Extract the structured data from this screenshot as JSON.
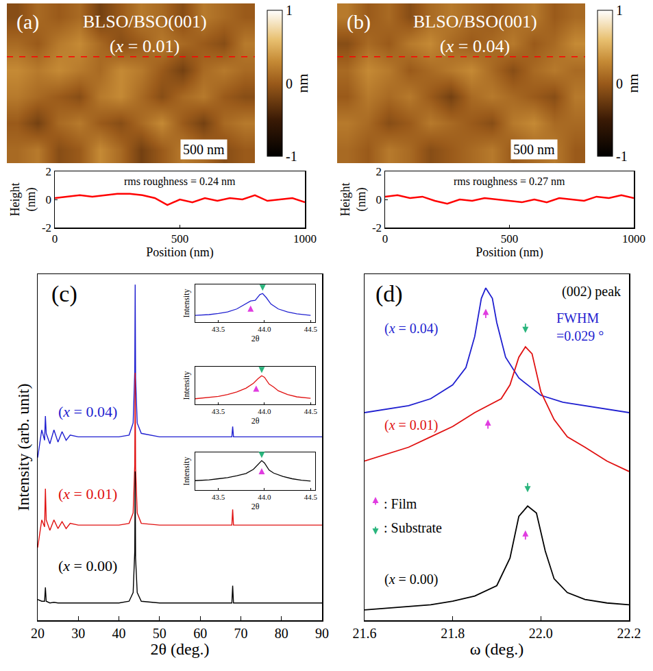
{
  "chart_data": [
    {
      "type": "heatmap",
      "panel_label": "(a)",
      "title": "BLSO/BSO(001)",
      "subtitle": "(x = 0.01)",
      "image_size_nm": [
        1400,
        900
      ],
      "cells": [
        [
          0.1,
          0.2,
          -0.1,
          0.0,
          0.3,
          0.1,
          -0.2,
          0.0,
          0.2,
          0.1,
          -0.1,
          0.0
        ],
        [
          0.0,
          -0.2,
          0.1,
          0.2,
          0.0,
          -0.1,
          0.1,
          0.3,
          0.0,
          -0.2,
          0.1,
          0.2
        ],
        [
          0.2,
          0.1,
          0.0,
          -0.1,
          0.2,
          0.3,
          0.1,
          -0.1,
          0.1,
          0.2,
          0.0,
          -0.1
        ],
        [
          0.3,
          0.2,
          0.3,
          0.2,
          0.1,
          0.3,
          0.2,
          0.0,
          -0.2,
          0.1,
          0.2,
          0.1
        ],
        [
          0.1,
          0.0,
          0.2,
          0.3,
          0.1,
          -0.1,
          0.0,
          0.2,
          0.1,
          0.0,
          -0.1,
          0.2
        ],
        [
          -0.1,
          0.1,
          0.0,
          0.1,
          -0.2,
          0.0,
          0.2,
          0.1,
          -0.1,
          0.2,
          0.1,
          0.0
        ]
      ],
      "zlim": [
        -1,
        1
      ],
      "zticks": [
        -1,
        0,
        1
      ],
      "colorbar_title": "nm",
      "scale_bar": "500 nm",
      "profile_y_nm": 600,
      "line_style": "dashed",
      "color": "#ff0000"
    },
    {
      "type": "line",
      "x": [
        0,
        50,
        100,
        150,
        200,
        250,
        300,
        350,
        400,
        450,
        500,
        550,
        600,
        650,
        700,
        750,
        800,
        850,
        900,
        950,
        1000
      ],
      "values": [
        0.1,
        0.2,
        0.3,
        0.2,
        0.3,
        0.4,
        0.4,
        0.3,
        0.1,
        -0.4,
        0.0,
        -0.2,
        0.1,
        -0.1,
        0.1,
        0.0,
        0.3,
        -0.1,
        0.0,
        0.1,
        -0.2
      ],
      "color": "#ff0000",
      "xlim": [
        0,
        1000
      ],
      "xticks": [
        0,
        500,
        1000
      ],
      "ylim": [
        -2,
        2
      ],
      "yticks": [
        -2,
        0,
        2
      ],
      "x_label": "Position (nm)",
      "y_label": [
        "Height",
        "(nm)"
      ],
      "annotation": "rms roughness = 0.24 nm"
    },
    {
      "type": "heatmap",
      "panel_label": "(b)",
      "title": "BLSO/BSO(001)",
      "subtitle": "(x = 0.04)",
      "image_size_nm": [
        1400,
        900
      ],
      "cells": [
        [
          0.1,
          0.0,
          0.2,
          0.1,
          -0.1,
          0.0,
          0.1,
          0.2,
          0.0,
          0.1,
          0.2,
          0.0
        ],
        [
          0.2,
          0.1,
          -0.1,
          0.0,
          0.2,
          0.1,
          0.0,
          -0.1,
          0.2,
          0.3,
          0.1,
          0.1
        ],
        [
          0.0,
          0.2,
          0.1,
          0.2,
          0.0,
          -0.2,
          0.1,
          0.2,
          0.1,
          0.0,
          -0.1,
          0.2
        ],
        [
          0.1,
          0.3,
          0.2,
          0.0,
          0.1,
          0.2,
          0.3,
          0.1,
          -0.1,
          0.1,
          0.2,
          0.1
        ],
        [
          -0.1,
          0.1,
          0.0,
          0.2,
          0.3,
          0.1,
          0.0,
          0.1,
          0.2,
          0.0,
          0.1,
          0.3
        ],
        [
          0.2,
          0.0,
          0.1,
          -0.1,
          0.1,
          0.2,
          0.1,
          0.0,
          0.1,
          0.2,
          0.0,
          0.1
        ]
      ],
      "zlim": [
        -1,
        1
      ],
      "zticks": [
        -1,
        0,
        1
      ],
      "colorbar_title": "nm",
      "scale_bar": "500 nm",
      "profile_y_nm": 600,
      "line_style": "dashed",
      "color": "#ff0000"
    },
    {
      "type": "line",
      "x": [
        0,
        50,
        100,
        150,
        200,
        250,
        300,
        350,
        400,
        450,
        500,
        550,
        600,
        650,
        700,
        750,
        800,
        850,
        900,
        950,
        1000
      ],
      "values": [
        0.2,
        0.3,
        0.1,
        0.2,
        -0.1,
        -0.3,
        0.0,
        -0.1,
        0.1,
        0.0,
        -0.1,
        -0.2,
        0.0,
        -0.2,
        0.1,
        0.0,
        -0.1,
        0.2,
        0.1,
        0.3,
        0.1
      ],
      "color": "#ff0000",
      "xlim": [
        0,
        1000
      ],
      "xticks": [
        0,
        500,
        1000
      ],
      "ylim": [
        -2,
        2
      ],
      "yticks": [
        -2,
        0,
        2
      ],
      "x_label": "Position (nm)",
      "y_label": [
        "Height",
        "(nm)"
      ],
      "annotation": "rms roughness = 0.27 nm"
    },
    {
      "type": "line",
      "panel_label": "(c)",
      "x_label": "2θ (deg.)",
      "y_label": "Intensity (arb. unit)",
      "xlim": [
        20,
        90
      ],
      "xticks": [
        20,
        30,
        40,
        50,
        60,
        70,
        80,
        90
      ],
      "ylim": [
        0,
        100
      ],
      "tick_labels": "x",
      "x": [
        20,
        21,
        21.7,
        21.9,
        22.1,
        23,
        24,
        25,
        26,
        27,
        28,
        30,
        35,
        40,
        42.5,
        43.5,
        43.9,
        44.0,
        44.1,
        44.5,
        45.5,
        50,
        55,
        60,
        65,
        67.8,
        68,
        68.2,
        70,
        75,
        80,
        85,
        90
      ],
      "series": [
        {
          "name": "(x = 0.04)",
          "color": "#1f1fd0",
          "values": [
            47,
            55,
            52,
            59,
            54,
            51,
            55,
            51.5,
            54.5,
            52,
            53.5,
            53,
            53,
            53,
            53.5,
            57,
            72,
            97,
            70,
            57,
            54,
            53,
            53,
            53,
            53,
            53,
            56,
            53,
            53,
            53,
            53,
            53,
            53
          ],
          "inset": {
            "x": [
              43.25,
              43.4,
              43.5,
              43.6,
              43.7,
              43.78,
              43.85,
              43.9,
              43.95,
              43.98,
              44.02,
              44.07,
              44.15,
              44.25,
              44.35,
              44.5
            ],
            "values": [
              1.8,
              2.0,
              2.3,
              2.7,
              3.5,
              4.6,
              5.6,
              5.8,
              7.3,
              7.6,
              6.5,
              4.8,
              3.5,
              2.7,
              2.2,
              1.8
            ],
            "film_peak": [
              43.85,
              4.4
            ],
            "substrate_peak": [
              43.98,
              8.3
            ]
          }
        },
        {
          "name": "(x = 0.01)",
          "color": "#e01010",
          "values": [
            21,
            29,
            27,
            38,
            29,
            26,
            29,
            26.5,
            28.5,
            26.5,
            28,
            27.5,
            27.5,
            27.5,
            28,
            31,
            45,
            71.5,
            44,
            31,
            28,
            27.5,
            27.5,
            27.5,
            27.5,
            27.5,
            32,
            27.5,
            27.5,
            27.5,
            27.5,
            27.5,
            27.5
          ],
          "inset": {
            "x": [
              43.25,
              43.4,
              43.5,
              43.6,
              43.7,
              43.8,
              43.88,
              43.93,
              43.97,
              44.0,
              44.05,
              44.1,
              44.15,
              44.25,
              44.35,
              44.5
            ],
            "values": [
              1.5,
              1.8,
              2.1,
              2.6,
              3.3,
              4.3,
              5.6,
              6.8,
              7.6,
              7.2,
              5.4,
              4.6,
              3.6,
              2.6,
              2.0,
              1.6
            ],
            "film_peak": [
              43.91,
              5.0
            ],
            "substrate_peak": [
              43.97,
              8.3
            ]
          }
        },
        {
          "name": "(x = 0.00)",
          "color": "#000000",
          "values": [
            6,
            5.5,
            5.5,
            9.5,
            5.5,
            5,
            5.2,
            5,
            5,
            5,
            5,
            5,
            5,
            5,
            5.5,
            8,
            20,
            43,
            18,
            8,
            5.5,
            5,
            5,
            5,
            5,
            5,
            10,
            5,
            5,
            5,
            5,
            5,
            5
          ],
          "inset": {
            "x": [
              43.25,
              43.4,
              43.5,
              43.6,
              43.7,
              43.8,
              43.88,
              43.93,
              43.97,
              44.0,
              44.05,
              44.1,
              44.2,
              44.3,
              44.4,
              44.5
            ],
            "values": [
              2.5,
              2.7,
              3.0,
              3.3,
              3.8,
              4.4,
              5.5,
              6.8,
              7.8,
              7.2,
              5.3,
              4.5,
              3.6,
              3.0,
              2.6,
              2.4
            ],
            "film_peak": [
              43.97,
              5.8
            ],
            "substrate_peak": [
              43.97,
              8.5
            ]
          }
        }
      ],
      "inset_axes": {
        "xlim": [
          43.25,
          44.55
        ],
        "xticks": [
          43.5,
          {
            "value": 44,
            "label": "44.0"
          },
          44.5
        ],
        "ylim": [
          0,
          10
        ],
        "tick_labels": "x",
        "x_label": "2θ",
        "y_label": "Intensity"
      }
    },
    {
      "type": "line",
      "panel_label": "(d)",
      "title": "(002) peak",
      "x_label": "ω (deg.)",
      "xlim": [
        21.6,
        22.2
      ],
      "xticks": [
        21.6,
        21.8,
        {
          "value": 22,
          "label": "22.0"
        },
        22.2
      ],
      "ylim": [
        0,
        100
      ],
      "tick_labels": "x",
      "series": [
        {
          "name": "(x = 0.04)",
          "color": "#1f1fd0",
          "x": [
            21.6,
            21.65,
            21.7,
            21.75,
            21.8,
            21.83,
            21.85,
            21.865,
            21.875,
            21.89,
            21.9,
            21.92,
            21.95,
            21.98,
            22.0,
            22.05,
            22.1,
            22.15,
            22.2
          ],
          "values": [
            60,
            61,
            62,
            64,
            68,
            73,
            82,
            93,
            96,
            93,
            86,
            76,
            70,
            67,
            65,
            63,
            62,
            61,
            60
          ],
          "film_peak": [
            21.875,
            90
          ],
          "annotation": [
            "FWHM",
            "=0.029 °"
          ]
        },
        {
          "name": "(x = 0.01)",
          "color": "#e01010",
          "x": [
            21.6,
            21.65,
            21.7,
            21.75,
            21.8,
            21.85,
            21.88,
            21.91,
            21.93,
            21.95,
            21.965,
            21.98,
            22.0,
            22.03,
            22.06,
            22.1,
            22.15,
            22.2
          ],
          "values": [
            46,
            48,
            50,
            53,
            56,
            60,
            62,
            64,
            68,
            76,
            79,
            77,
            66,
            58,
            53,
            50,
            46,
            43
          ],
          "film_peak": [
            21.88,
            58
          ],
          "substrate_peak": [
            21.965,
            83
          ]
        },
        {
          "name": "(x = 0.00)",
          "color": "#000000",
          "x": [
            21.6,
            21.65,
            21.7,
            21.75,
            21.8,
            21.85,
            21.9,
            21.93,
            21.95,
            21.97,
            21.99,
            22.01,
            22.03,
            22.06,
            22.1,
            22.15,
            22.2
          ],
          "values": [
            3,
            3.5,
            4,
            4.5,
            5.5,
            7,
            10,
            18,
            30,
            33,
            31,
            20,
            12,
            8,
            6,
            5,
            4.5
          ],
          "film_peak": [
            21.965,
            26
          ],
          "substrate_peak": [
            21.97,
            37
          ]
        }
      ],
      "peak_markers": [
        {
          "label": ": Film",
          "color": "#e03ce0",
          "marker": "arrow_up"
        },
        {
          "label": ": Substrate",
          "color": "#2ab57d",
          "marker": "arrow_down"
        }
      ]
    }
  ]
}
